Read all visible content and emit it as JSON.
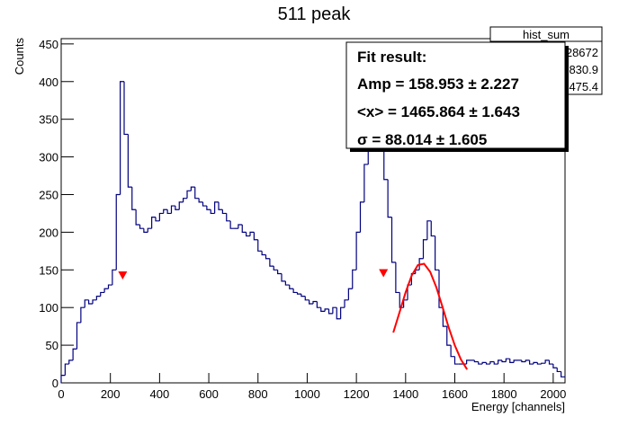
{
  "chart_data": {
    "type": "histogram",
    "title": "511 peak",
    "xlabel": "Energy [channels]",
    "ylabel": "Counts",
    "color": "#000080",
    "bins": [
      0,
      16,
      32,
      48,
      64,
      80,
      96,
      112,
      128,
      144,
      160,
      176,
      192,
      208,
      224,
      240,
      256,
      272,
      288,
      304,
      320,
      336,
      352,
      368,
      384,
      400,
      416,
      432,
      448,
      464,
      480,
      496,
      512,
      528,
      544,
      560,
      576,
      592,
      608,
      624,
      640,
      656,
      672,
      688,
      704,
      720,
      736,
      752,
      768,
      784,
      800,
      816,
      832,
      848,
      864,
      880,
      896,
      912,
      928,
      944,
      960,
      976,
      992,
      1008,
      1024,
      1040,
      1056,
      1072,
      1088,
      1104,
      1120,
      1136,
      1152,
      1168,
      1184,
      1200,
      1216,
      1232,
      1248,
      1264,
      1280,
      1296,
      1312,
      1328,
      1344,
      1360,
      1376,
      1392,
      1408,
      1424,
      1440,
      1456,
      1472,
      1488,
      1504,
      1520,
      1536,
      1552,
      1568,
      1584,
      1600,
      1616,
      1632,
      1648,
      1664,
      1680,
      1696,
      1712,
      1728,
      1744,
      1760,
      1776,
      1792,
      1808,
      1824,
      1840,
      1856,
      1872,
      1888,
      1904,
      1920,
      1936,
      1952,
      1968,
      1984,
      2000,
      2016,
      2032,
      2048
    ],
    "values": [
      10,
      25,
      30,
      45,
      80,
      100,
      110,
      105,
      110,
      115,
      120,
      125,
      130,
      150,
      250,
      400,
      330,
      260,
      230,
      210,
      205,
      200,
      205,
      220,
      215,
      225,
      230,
      225,
      235,
      230,
      240,
      245,
      255,
      260,
      245,
      240,
      235,
      230,
      225,
      240,
      230,
      225,
      215,
      205,
      205,
      210,
      200,
      195,
      200,
      190,
      175,
      170,
      165,
      155,
      150,
      145,
      135,
      130,
      125,
      120,
      118,
      115,
      110,
      105,
      108,
      100,
      95,
      98,
      92,
      100,
      85,
      100,
      110,
      125,
      150,
      200,
      240,
      290,
      320,
      330,
      330,
      310,
      270,
      220,
      160,
      120,
      100,
      110,
      130,
      145,
      150,
      165,
      190,
      215,
      195,
      150,
      100,
      75,
      50,
      35,
      25,
      25,
      25,
      30,
      30,
      28,
      25,
      27,
      25,
      28,
      25,
      30,
      28,
      32,
      27,
      30,
      30,
      28,
      30,
      25,
      27,
      25,
      26,
      30,
      25,
      20,
      15,
      8
    ],
    "xlim": [
      0,
      2048
    ],
    "ylim": [
      0,
      457
    ],
    "xticks": [
      0,
      200,
      400,
      600,
      800,
      1000,
      1200,
      1400,
      1600,
      1800,
      2000
    ],
    "yticks": [
      0,
      50,
      100,
      150,
      200,
      250,
      300,
      350,
      400,
      450
    ],
    "fit": {
      "color": "#ff0000",
      "x": [
        1350,
        1375,
        1400,
        1425,
        1450,
        1475,
        1500,
        1525,
        1550,
        1575,
        1600,
        1625,
        1650
      ],
      "values": [
        66.8,
        93.3,
        120.1,
        142.7,
        156.4,
        158.1,
        147.4,
        126.8,
        100.7,
        73.7,
        49.8,
        31.0,
        17.8
      ]
    },
    "markers": {
      "color": "#ff0000",
      "x": [
        250,
        1310
      ],
      "values": [
        142,
        145
      ]
    },
    "stats": {
      "title": "hist_sum",
      "entries": [
        "28672",
        "830.9",
        "475.4"
      ]
    },
    "fit_result": {
      "title": "Fit result:",
      "lines": [
        "Amp = 158.953 ± 2.227",
        "<x> = 1465.864 ± 1.643",
        "σ = 88.014 ± 1.605"
      ]
    }
  }
}
